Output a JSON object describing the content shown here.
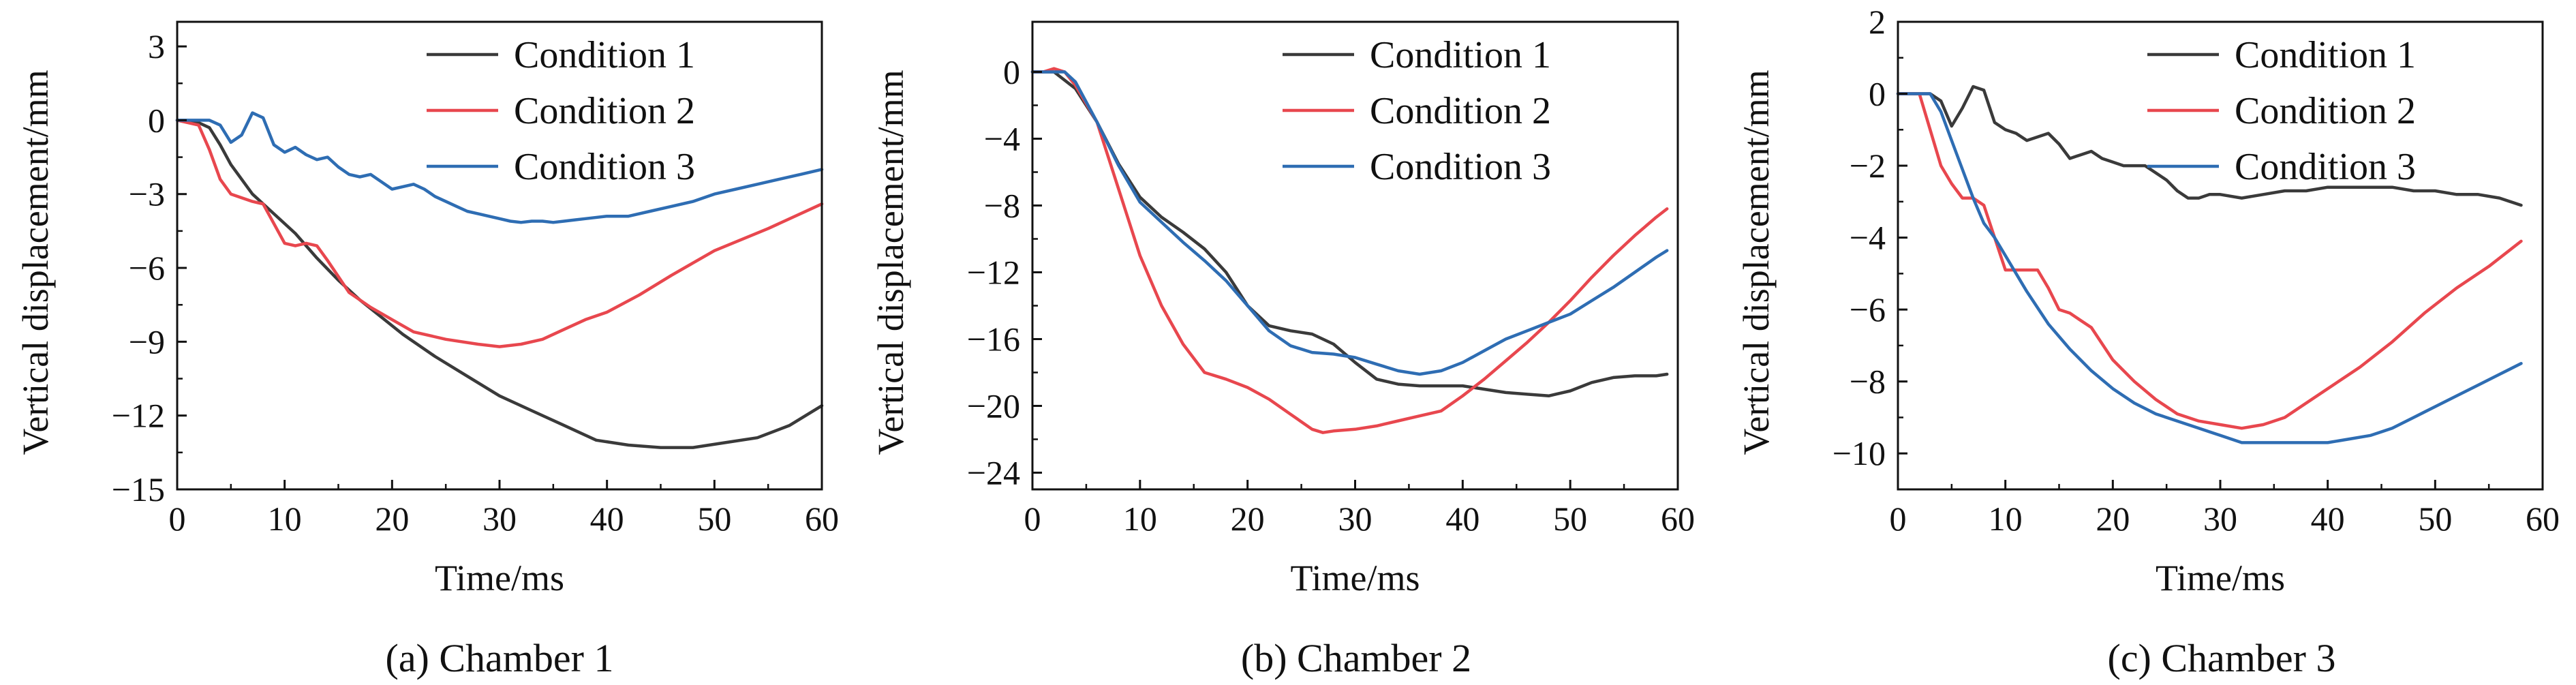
{
  "colors": {
    "axis": "#111111",
    "Condition 1": "#3a3a3a",
    "Condition 2": "#e8474e",
    "Condition 3": "#2e6db3"
  },
  "chart_data": [
    {
      "type": "line",
      "caption": "(a) Chamber 1",
      "xlabel": "Time/ms",
      "ylabel": "Vertical displacement/mm",
      "xlim": [
        0,
        60
      ],
      "ylim": [
        -15,
        4
      ],
      "xticks": [
        0,
        10,
        20,
        30,
        40,
        50,
        60
      ],
      "yticks": [
        3,
        0,
        -3,
        -6,
        -9,
        -12,
        -15
      ],
      "legend_position": "top-right",
      "series": [
        {
          "name": "Condition 1",
          "x": [
            0,
            2,
            3,
            4,
            5,
            7,
            9,
            11,
            13,
            15,
            17,
            19,
            21,
            24,
            27,
            30,
            33,
            36,
            39,
            42,
            45,
            48,
            51,
            54,
            57,
            60
          ],
          "y": [
            0,
            -0.1,
            -0.3,
            -1.0,
            -1.8,
            -3.0,
            -3.8,
            -4.6,
            -5.6,
            -6.5,
            -7.3,
            -8.0,
            -8.7,
            -9.6,
            -10.4,
            -11.2,
            -11.8,
            -12.4,
            -13.0,
            -13.2,
            -13.3,
            -13.3,
            -13.1,
            -12.9,
            -12.4,
            -11.6
          ]
        },
        {
          "name": "Condition 2",
          "x": [
            0,
            2,
            3,
            4,
            5,
            7,
            8,
            9,
            10,
            11,
            12,
            13,
            14,
            16,
            18,
            20,
            22,
            25,
            28,
            30,
            32,
            34,
            36,
            38,
            40,
            43,
            46,
            50,
            55,
            60
          ],
          "y": [
            0,
            -0.2,
            -1.2,
            -2.4,
            -3.0,
            -3.3,
            -3.4,
            -4.2,
            -5.0,
            -5.1,
            -5.0,
            -5.1,
            -5.7,
            -7.0,
            -7.6,
            -8.1,
            -8.6,
            -8.9,
            -9.1,
            -9.2,
            -9.1,
            -8.9,
            -8.5,
            -8.1,
            -7.8,
            -7.1,
            -6.3,
            -5.3,
            -4.4,
            -3.4
          ]
        },
        {
          "name": "Condition 3",
          "x": [
            0,
            2,
            3,
            4,
            5,
            6,
            7,
            8,
            9,
            10,
            11,
            12,
            13,
            14,
            15,
            16,
            17,
            18,
            19,
            20,
            21,
            22,
            23,
            24,
            25,
            26,
            27,
            28,
            29,
            30,
            31,
            32,
            33,
            34,
            35,
            36,
            37,
            38,
            40,
            42,
            44,
            46,
            48,
            50,
            52,
            54,
            56,
            58,
            60
          ],
          "y": [
            0,
            0,
            0,
            -0.2,
            -0.9,
            -0.6,
            0.3,
            0.1,
            -1.0,
            -1.3,
            -1.1,
            -1.4,
            -1.6,
            -1.5,
            -1.9,
            -2.2,
            -2.3,
            -2.2,
            -2.5,
            -2.8,
            -2.7,
            -2.6,
            -2.8,
            -3.1,
            -3.3,
            -3.5,
            -3.7,
            -3.8,
            -3.9,
            -4.0,
            -4.1,
            -4.15,
            -4.1,
            -4.1,
            -4.15,
            -4.1,
            -4.05,
            -4.0,
            -3.9,
            -3.9,
            -3.7,
            -3.5,
            -3.3,
            -3.0,
            -2.8,
            -2.6,
            -2.4,
            -2.2,
            -2.0
          ]
        }
      ]
    },
    {
      "type": "line",
      "caption": "(b) Chamber 2",
      "xlabel": "Time/ms",
      "ylabel": "Vertical displacement/mm",
      "xlim": [
        0,
        60
      ],
      "ylim": [
        -25,
        3
      ],
      "xticks": [
        0,
        10,
        20,
        30,
        40,
        50,
        60
      ],
      "yticks": [
        0,
        -4,
        -8,
        -12,
        -16,
        -20,
        -24
      ],
      "legend_position": "top-right",
      "series": [
        {
          "name": "Condition 1",
          "x": [
            0,
            2,
            4,
            6,
            8,
            10,
            12,
            14,
            16,
            18,
            20,
            22,
            24,
            26,
            28,
            30,
            32,
            34,
            36,
            38,
            40,
            42,
            44,
            46,
            48,
            50,
            52,
            54,
            56,
            58,
            59
          ],
          "y": [
            0,
            0,
            -1,
            -3,
            -5.5,
            -7.5,
            -8.7,
            -9.6,
            -10.6,
            -12,
            -14,
            -15.2,
            -15.5,
            -15.7,
            -16.3,
            -17.4,
            -18.4,
            -18.7,
            -18.8,
            -18.8,
            -18.8,
            -19.0,
            -19.2,
            -19.3,
            -19.4,
            -19.1,
            -18.6,
            -18.3,
            -18.2,
            -18.2,
            -18.1
          ]
        },
        {
          "name": "Condition 2",
          "x": [
            0,
            1,
            2,
            3,
            4,
            6,
            8,
            10,
            12,
            14,
            16,
            18,
            20,
            22,
            24,
            26,
            27,
            28,
            30,
            32,
            34,
            36,
            38,
            40,
            42,
            44,
            46,
            48,
            50,
            52,
            54,
            56,
            58,
            59
          ],
          "y": [
            0,
            0,
            0.2,
            0,
            -0.8,
            -3,
            -7,
            -11,
            -14,
            -16.3,
            -18,
            -18.4,
            -18.9,
            -19.6,
            -20.5,
            -21.4,
            -21.6,
            -21.5,
            -21.4,
            -21.2,
            -20.9,
            -20.6,
            -20.3,
            -19.4,
            -18.4,
            -17.3,
            -16.2,
            -15.0,
            -13.7,
            -12.3,
            -11.0,
            -9.8,
            -8.7,
            -8.2
          ]
        },
        {
          "name": "Condition 3",
          "x": [
            0,
            2,
            3,
            4,
            6,
            8,
            10,
            12,
            14,
            16,
            18,
            20,
            22,
            24,
            26,
            28,
            30,
            32,
            34,
            36,
            38,
            40,
            42,
            44,
            46,
            48,
            50,
            52,
            54,
            56,
            58,
            59
          ],
          "y": [
            0,
            0,
            0,
            -0.6,
            -3,
            -5.6,
            -7.8,
            -9.0,
            -10.2,
            -11.3,
            -12.5,
            -14.0,
            -15.5,
            -16.4,
            -16.8,
            -16.9,
            -17.1,
            -17.5,
            -17.9,
            -18.1,
            -17.9,
            -17.4,
            -16.7,
            -16.0,
            -15.5,
            -15.0,
            -14.5,
            -13.7,
            -12.9,
            -12.0,
            -11.1,
            -10.7
          ]
        }
      ]
    },
    {
      "type": "line",
      "caption": "(c) Chamber 3",
      "xlabel": "Time/ms",
      "ylabel": "Vertical displacement/mm",
      "xlim": [
        0,
        60
      ],
      "ylim": [
        -11,
        2
      ],
      "xticks": [
        0,
        10,
        20,
        30,
        40,
        50,
        60
      ],
      "yticks": [
        2,
        0,
        -2,
        -4,
        -6,
        -8,
        -10
      ],
      "legend_position": "top-right",
      "series": [
        {
          "name": "Condition 1",
          "x": [
            0,
            2,
            3,
            4,
            5,
            6,
            7,
            8,
            9,
            10,
            11,
            12,
            13,
            14,
            15,
            16,
            17,
            18,
            19,
            20,
            21,
            22,
            23,
            24,
            25,
            26,
            27,
            28,
            29,
            30,
            32,
            34,
            36,
            38,
            40,
            42,
            44,
            46,
            48,
            50,
            52,
            54,
            56,
            58
          ],
          "y": [
            0,
            0,
            0,
            -0.2,
            -0.9,
            -0.4,
            0.2,
            0.1,
            -0.8,
            -1.0,
            -1.1,
            -1.3,
            -1.2,
            -1.1,
            -1.4,
            -1.8,
            -1.7,
            -1.6,
            -1.8,
            -1.9,
            -2.0,
            -2.0,
            -2.0,
            -2.2,
            -2.4,
            -2.7,
            -2.9,
            -2.9,
            -2.8,
            -2.8,
            -2.9,
            -2.8,
            -2.7,
            -2.7,
            -2.6,
            -2.6,
            -2.6,
            -2.6,
            -2.7,
            -2.7,
            -2.8,
            -2.8,
            -2.9,
            -3.1
          ]
        },
        {
          "name": "Condition 2",
          "x": [
            0,
            2,
            3,
            4,
            5,
            6,
            7,
            8,
            9,
            10,
            11,
            12,
            13,
            14,
            15,
            16,
            17,
            18,
            20,
            22,
            24,
            26,
            28,
            30,
            32,
            34,
            36,
            38,
            40,
            43,
            46,
            49,
            52,
            55,
            58
          ],
          "y": [
            0,
            0,
            -1,
            -2,
            -2.5,
            -2.9,
            -2.9,
            -3.1,
            -4.0,
            -4.9,
            -4.9,
            -4.9,
            -4.9,
            -5.4,
            -6.0,
            -6.1,
            -6.3,
            -6.5,
            -7.4,
            -8.0,
            -8.5,
            -8.9,
            -9.1,
            -9.2,
            -9.3,
            -9.2,
            -9.0,
            -8.6,
            -8.2,
            -7.6,
            -6.9,
            -6.1,
            -5.4,
            -4.8,
            -4.1
          ]
        },
        {
          "name": "Condition 3",
          "x": [
            0,
            2,
            3,
            4,
            5,
            6,
            7,
            8,
            9,
            10,
            12,
            14,
            16,
            18,
            20,
            22,
            24,
            26,
            28,
            30,
            32,
            34,
            36,
            38,
            40,
            42,
            44,
            46,
            48,
            50,
            52,
            54,
            56,
            58
          ],
          "y": [
            0,
            0,
            0,
            -0.5,
            -1.3,
            -2.1,
            -2.9,
            -3.6,
            -4.0,
            -4.5,
            -5.5,
            -6.4,
            -7.1,
            -7.7,
            -8.2,
            -8.6,
            -8.9,
            -9.1,
            -9.3,
            -9.5,
            -9.7,
            -9.7,
            -9.7,
            -9.7,
            -9.7,
            -9.6,
            -9.5,
            -9.3,
            -9.0,
            -8.7,
            -8.4,
            -8.1,
            -7.8,
            -7.5
          ]
        }
      ]
    }
  ]
}
